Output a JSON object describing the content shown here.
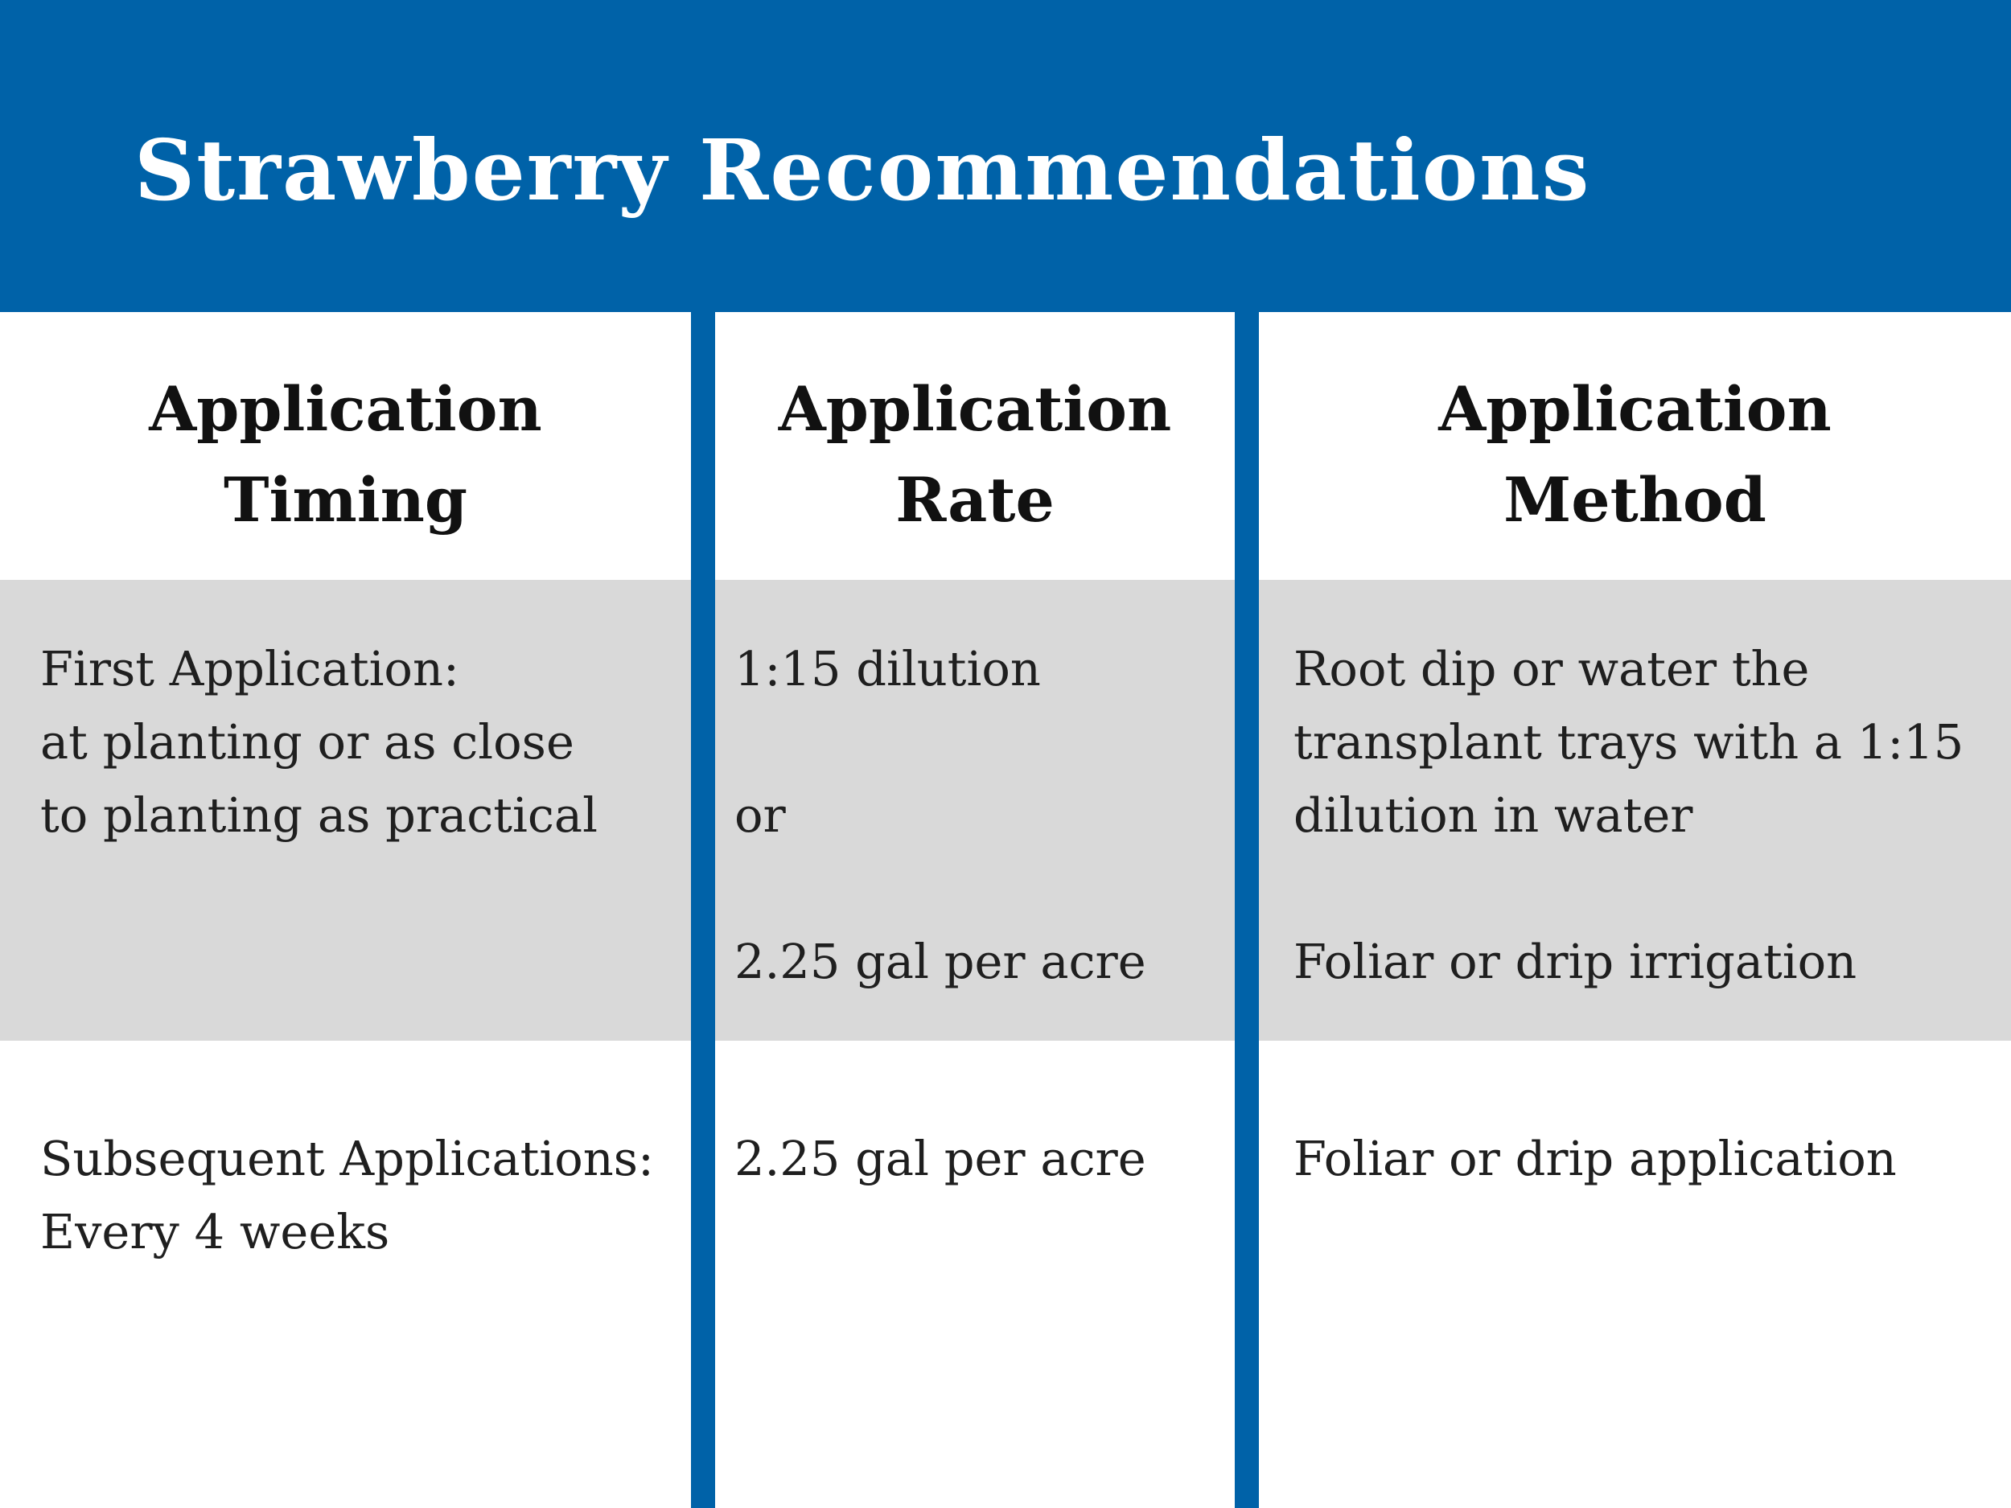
{
  "header": {
    "title": "Strawberry Recommendations",
    "background_color": "#0062a8"
  },
  "colors": {
    "divider": "#0062a8",
    "row_band": "#d9d9d9"
  },
  "table": {
    "columns": [
      {
        "label_line1": "Application",
        "label_line2": "Timing"
      },
      {
        "label_line1": "Application",
        "label_line2": "Rate"
      },
      {
        "label_line1": "Application",
        "label_line2": "Method"
      }
    ],
    "rows": [
      {
        "timing": [
          "First Application:",
          "at planting or as close",
          "to planting as practical"
        ],
        "rate": [
          "1:15 dilution",
          "",
          "or",
          "",
          "2.25 gal per acre"
        ],
        "method": [
          "Root dip or water the",
          "transplant trays with a 1:15",
          "dilution in water",
          "",
          "Foliar or drip irrigation"
        ]
      },
      {
        "timing": [
          "Subsequent Applications:",
          "Every 4 weeks"
        ],
        "rate": [
          "2.25 gal per acre"
        ],
        "method": [
          "Foliar or drip application"
        ]
      }
    ]
  }
}
